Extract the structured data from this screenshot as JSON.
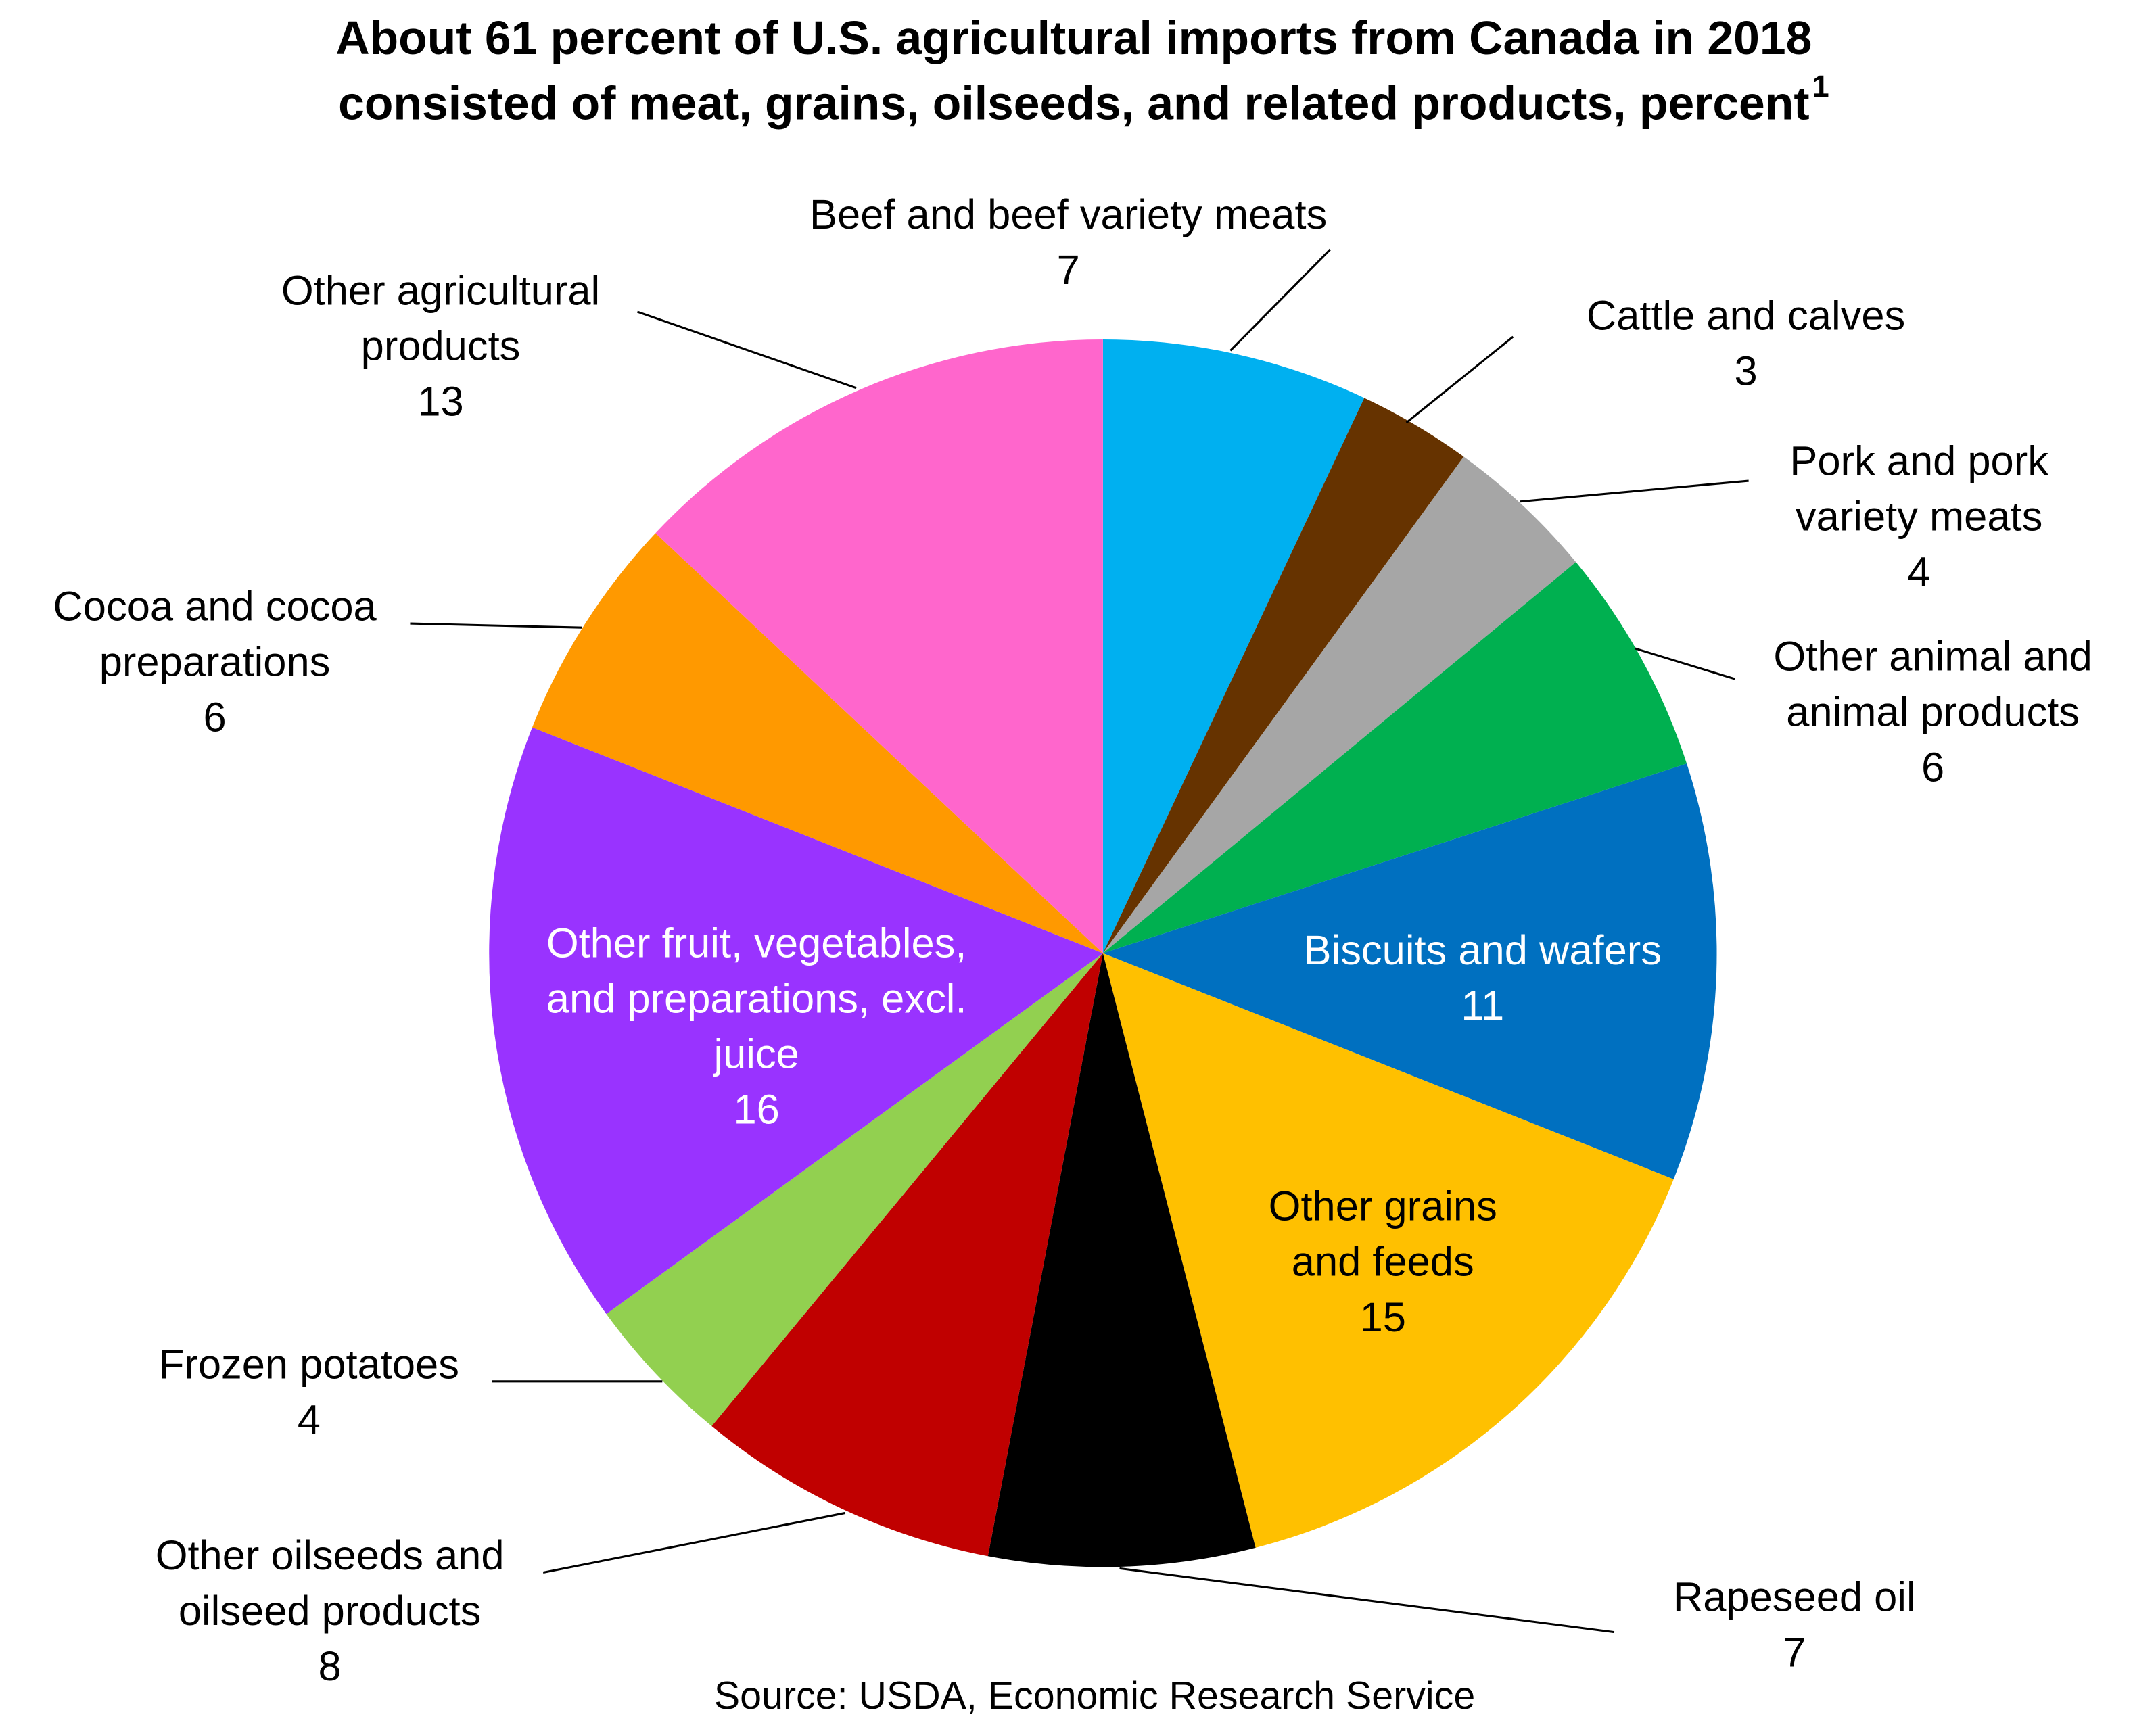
{
  "chart_data": {
    "type": "pie",
    "title": [
      "About 61 percent of U.S. agricultural imports from Canada in 2018",
      "consisted of meat, grains, oilseeds, and related products, percent"
    ],
    "title_superscript": "1",
    "source": "Source: USDA, Economic Research Service",
    "categories": [
      "Beef and beef variety meats",
      "Cattle and calves",
      "Pork and pork\nvariety meats",
      "Other animal and\nanimal products",
      "Biscuits and wafers",
      "Other grains\nand feeds",
      "Rapeseed oil",
      "Other oilseeds and\noilseed products",
      "Frozen potatoes",
      "Other fruit, vegetables,\nand preparations, excl.\njuice",
      "Cocoa and cocoa\npreparations",
      "Other agricultural\nproducts"
    ],
    "values": [
      7,
      3,
      4,
      6,
      11,
      15,
      7,
      8,
      4,
      16,
      6,
      13
    ],
    "colors": [
      "#00b0f0",
      "#663300",
      "#a6a6a6",
      "#00b050",
      "#0070c0",
      "#ffc000",
      "#000000",
      "#c00000",
      "#92d050",
      "#9933ff",
      "#ff9900",
      "#ff66cc"
    ]
  }
}
